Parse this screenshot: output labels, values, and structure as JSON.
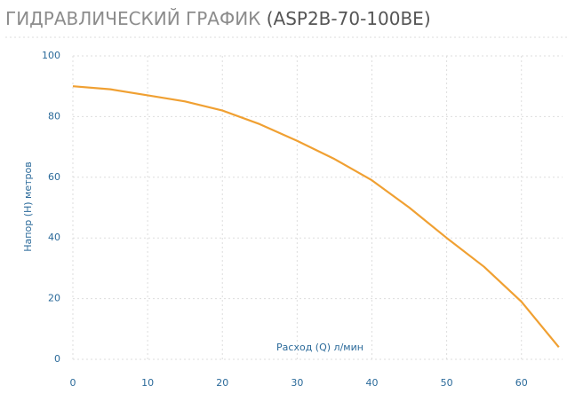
{
  "chart_data": {
    "type": "line",
    "title": "ГИДРАВЛИЧЕСКИЙ ГРАФИК",
    "subtitle": "(ASP2B-70-100BE)",
    "x_label": "Расход (Q) л/мин",
    "y_label": "Напор (H) метров",
    "x": [
      0,
      5,
      10,
      15,
      20,
      25,
      30,
      35,
      40,
      45,
      50,
      55,
      60,
      65
    ],
    "series": [
      {
        "color": "#f0a032",
        "values": [
          90,
          89,
          87,
          85,
          82,
          77.5,
          72,
          66,
          59,
          50,
          40,
          30.5,
          19,
          4
        ]
      }
    ],
    "xlim": [
      0,
      65.5
    ],
    "xticks": [
      0,
      10,
      20,
      30,
      40,
      50,
      60
    ],
    "ylim": [
      0,
      100
    ],
    "yticks": [
      0,
      20,
      40,
      60,
      80,
      100
    ],
    "grid": true
  }
}
